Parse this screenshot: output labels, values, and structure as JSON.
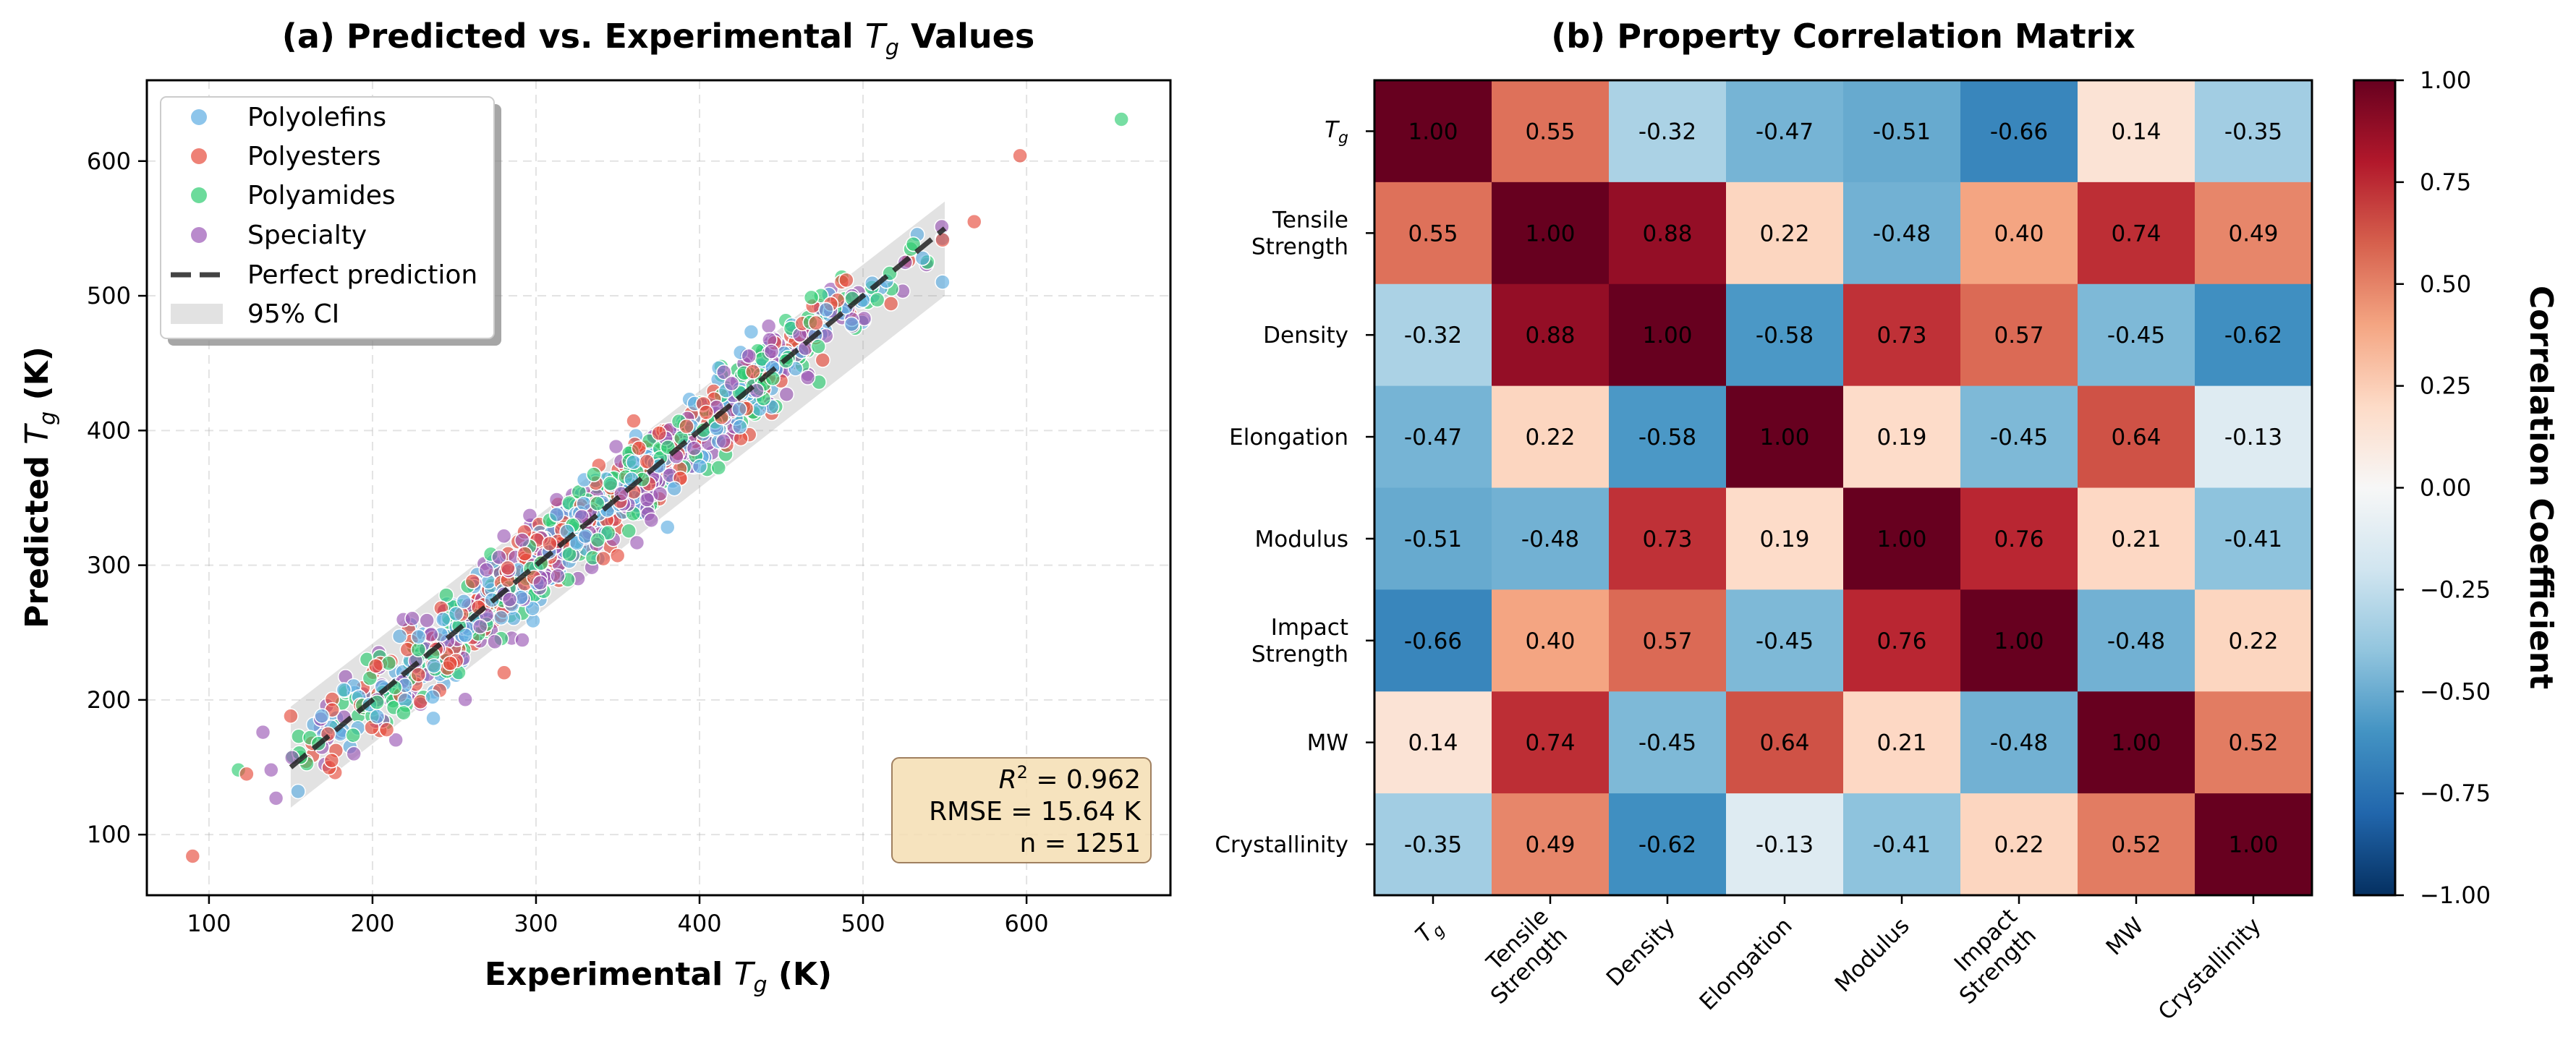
{
  "scatter": {
    "title_prefix": "(a) Predicted vs. Experimental ",
    "title_suffix": " Values",
    "sym": "T",
    "sym_sub": "g",
    "xlabel_prefix": "Experimental ",
    "xlabel_suffix": " (K)",
    "ylabel_prefix": "Predicted ",
    "ylabel_suffix": " (K)",
    "stats": {
      "r2_label": "R",
      "r2_sup": "2",
      "r2_value": " = 0.962",
      "rmse": "RMSE = 15.64 K",
      "n": "n = 1251"
    },
    "colors": {
      "Polyolefins": "#5dade2",
      "Polyesters": "#e74c3c",
      "Polyamides": "#2ecc71",
      "Specialty": "#9b59b6"
    }
  },
  "heatmap": {
    "title": "(b) Property Correlation Matrix",
    "colorbar_label": "Correlation Coefficient",
    "colorbar_ticks": [
      "1.00",
      "0.75",
      "0.50",
      "0.25",
      "0.00",
      "−0.25",
      "−0.50",
      "−0.75",
      "−1.00"
    ]
  },
  "chart_data": [
    {
      "type": "scatter",
      "title": "(a) Predicted vs. Experimental Tg Values",
      "xlabel": "Experimental Tg (K)",
      "ylabel": "Predicted Tg (K)",
      "xlim": [
        62,
        688
      ],
      "ylim": [
        55,
        660
      ],
      "xticks": [
        100,
        200,
        300,
        400,
        500,
        600
      ],
      "yticks": [
        100,
        200,
        300,
        400,
        500,
        600
      ],
      "grid": true,
      "legend_position": "top-left",
      "legend": [
        "Polyolefins",
        "Polyesters",
        "Polyamides",
        "Specialty",
        "Perfect prediction",
        "95% CI"
      ],
      "perfect_prediction": {
        "x": [
          150,
          550
        ],
        "y": [
          150,
          550
        ]
      },
      "ci_band": {
        "x": [
          150,
          550
        ],
        "lower_at_start": 120,
        "upper_at_start": 195,
        "lower_at_end": 500,
        "upper_at_end": 570
      },
      "n_points": 1251,
      "series": [
        {
          "name": "Polyolefins",
          "x_range": [
            150,
            550
          ],
          "noise_sd_K": 15
        },
        {
          "name": "Polyesters",
          "x_range": [
            150,
            550
          ],
          "noise_sd_K": 15
        },
        {
          "name": "Polyamides",
          "x_range": [
            150,
            550
          ],
          "noise_sd_K": 15
        },
        {
          "name": "Specialty",
          "x_range": [
            150,
            550
          ],
          "noise_sd_K": 15
        }
      ],
      "outliers": [
        {
          "series": "Polyamides",
          "x": 658,
          "y": 631
        },
        {
          "series": "Polyesters",
          "x": 596,
          "y": 604
        },
        {
          "series": "Polyesters",
          "x": 568,
          "y": 555
        },
        {
          "series": "Polyesters",
          "x": 90,
          "y": 84
        },
        {
          "series": "Polyamides",
          "x": 118,
          "y": 148
        },
        {
          "series": "Polyesters",
          "x": 123,
          "y": 145
        },
        {
          "series": "Specialty",
          "x": 133,
          "y": 176
        },
        {
          "series": "Specialty",
          "x": 138,
          "y": 148
        },
        {
          "series": "Specialty",
          "x": 141,
          "y": 127
        },
        {
          "series": "Polyesters",
          "x": 150,
          "y": 188
        },
        {
          "series": "Polyesters",
          "x": 175,
          "y": 155
        }
      ]
    },
    {
      "type": "heatmap",
      "title": "(b) Property Correlation Matrix",
      "rows": [
        "Tg",
        "Tensile Strength",
        "Density",
        "Elongation",
        "Modulus",
        "Impact Strength",
        "MW",
        "Crystallinity"
      ],
      "cols": [
        "Tg",
        "Tensile Strength",
        "Density",
        "Elongation",
        "Modulus",
        "Impact Strength",
        "MW",
        "Crystallinity"
      ],
      "values": [
        [
          1.0,
          0.55,
          -0.32,
          -0.47,
          -0.51,
          -0.66,
          0.14,
          -0.35
        ],
        [
          0.55,
          1.0,
          0.88,
          0.22,
          -0.48,
          0.4,
          0.74,
          0.49
        ],
        [
          -0.32,
          0.88,
          1.0,
          -0.58,
          0.73,
          0.57,
          -0.45,
          -0.62
        ],
        [
          -0.47,
          0.22,
          -0.58,
          1.0,
          0.19,
          -0.45,
          0.64,
          -0.13
        ],
        [
          -0.51,
          -0.48,
          0.73,
          0.19,
          1.0,
          0.76,
          0.21,
          -0.41
        ],
        [
          -0.66,
          0.4,
          0.57,
          -0.45,
          0.76,
          1.0,
          -0.48,
          0.22
        ],
        [
          0.14,
          0.74,
          -0.45,
          0.64,
          0.21,
          -0.48,
          1.0,
          0.52
        ],
        [
          -0.35,
          0.49,
          -0.62,
          -0.13,
          -0.41,
          0.22,
          0.52,
          1.0
        ]
      ],
      "colorbar": {
        "label": "Correlation Coefficient",
        "range": [
          -1,
          1
        ],
        "colormap": "RdBu_r"
      }
    }
  ]
}
